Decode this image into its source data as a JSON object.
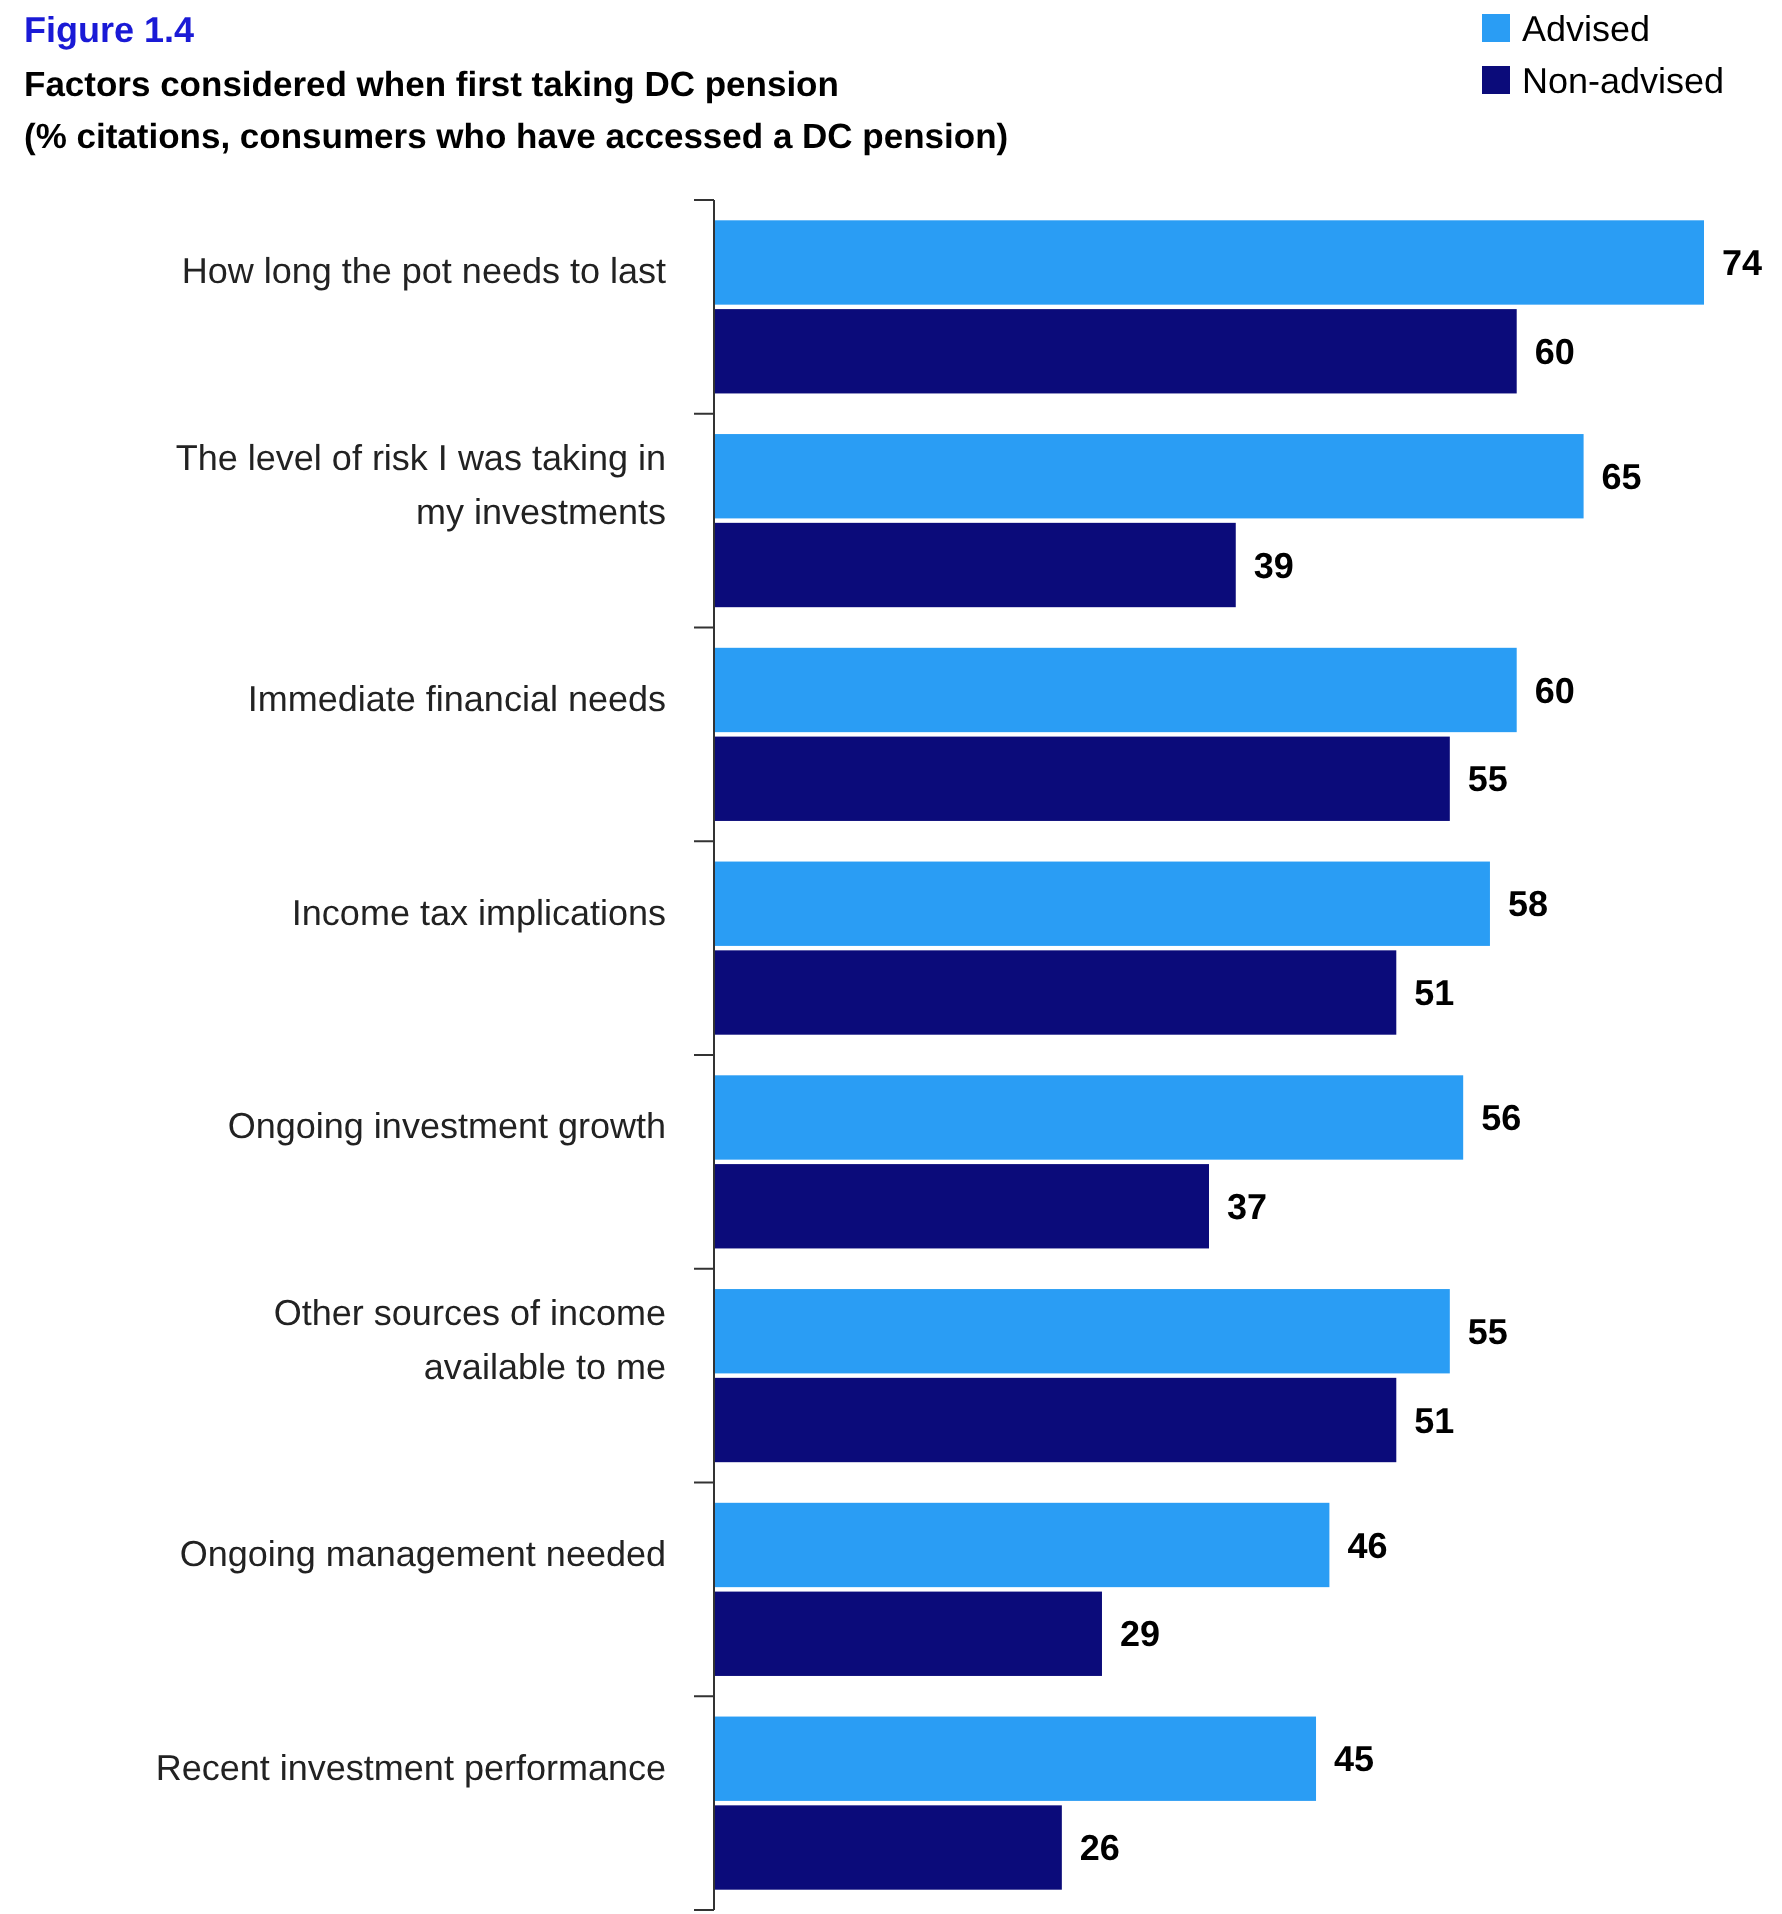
{
  "chart_data": {
    "type": "bar",
    "orientation": "horizontal",
    "title": "Factors considered when first taking DC pension",
    "subtitle": "(% citations, consumers who have accessed a DC pension)",
    "annotations": [
      "Figure 1.4"
    ],
    "categories": [
      "How long the pot needs to last",
      "The level of risk I was taking in my investments",
      "Immediate financial needs",
      "Income tax implications",
      "Ongoing investment growth",
      "Other sources of income available to me",
      "Ongoing management needed",
      "Recent investment performance"
    ],
    "series": [
      {
        "name": "Advised",
        "color": "#2a9df4",
        "values": [
          74,
          65,
          60,
          58,
          56,
          55,
          46,
          45
        ]
      },
      {
        "name": "Non-advised",
        "color": "#0b0b7a",
        "values": [
          60,
          39,
          55,
          51,
          37,
          51,
          29,
          26
        ]
      }
    ],
    "data_labels": true,
    "legend": "top right"
  }
}
